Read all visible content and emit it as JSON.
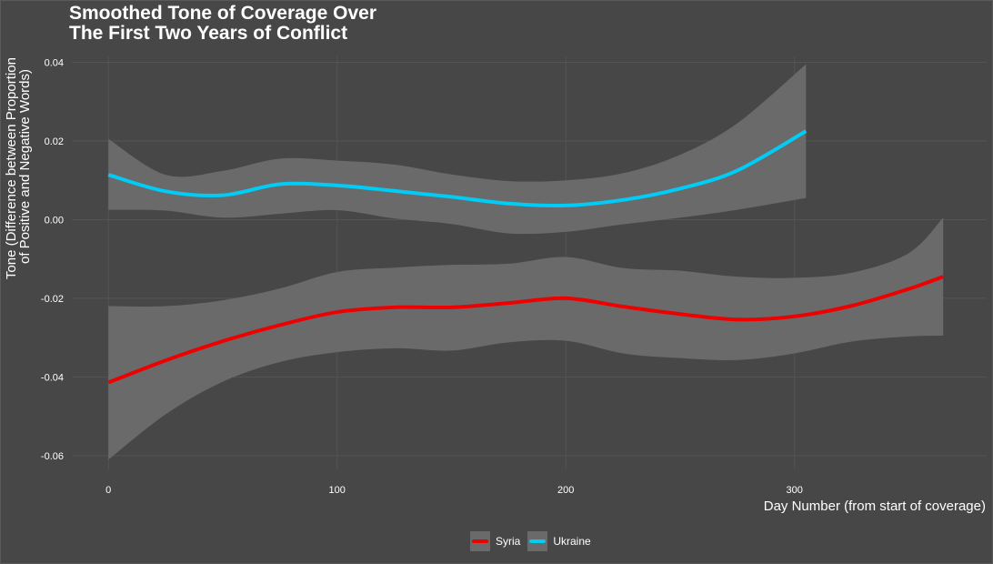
{
  "colors": {
    "background": "#474747",
    "grid": "#545454",
    "ribbon": "#6a6a6a",
    "syria": "#ee0000",
    "ukraine": "#00ccf5"
  },
  "chart_data": {
    "type": "line",
    "title_lines": [
      "Smoothed Tone of Coverage Over",
      "The First Two Years of Conflict"
    ],
    "xlabel": "Day Number (from start of coverage)",
    "ylabel_lines": [
      "Tone (Difference between Proportion",
      "of Positive and Negative Words)"
    ],
    "xlim": [
      -16,
      384
    ],
    "ylim": [
      -0.0635,
      0.0415
    ],
    "x_ticks": [
      0,
      100,
      200,
      300
    ],
    "y_ticks": [
      0.04,
      0.02,
      0.0,
      -0.02,
      -0.04,
      -0.06
    ],
    "y_tick_labels": [
      "0.04",
      "0.02",
      "0.00",
      "-0.02",
      "-0.04",
      "-0.06"
    ],
    "grid": true,
    "legend_position": "bottom",
    "series": [
      {
        "name": "Syria",
        "color_key": "syria",
        "x": [
          0,
          25,
          50,
          75,
          100,
          125,
          150,
          175,
          200,
          225,
          250,
          275,
          300,
          325,
          350,
          365
        ],
        "y": [
          -0.0414,
          -0.0358,
          -0.0309,
          -0.0268,
          -0.0235,
          -0.0223,
          -0.0223,
          -0.0212,
          -0.02,
          -0.0221,
          -0.024,
          -0.0254,
          -0.0246,
          -0.0219,
          -0.0176,
          -0.0145
        ],
        "upper": [
          -0.022,
          -0.022,
          -0.0205,
          -0.0175,
          -0.0133,
          -0.0122,
          -0.0115,
          -0.0112,
          -0.0095,
          -0.0123,
          -0.013,
          -0.0145,
          -0.0148,
          -0.0135,
          -0.0085,
          0.0005
        ],
        "lower": [
          -0.061,
          -0.0495,
          -0.0412,
          -0.0362,
          -0.0337,
          -0.0327,
          -0.0333,
          -0.0312,
          -0.0308,
          -0.034,
          -0.0352,
          -0.0357,
          -0.034,
          -0.031,
          -0.0297,
          -0.0295
        ]
      },
      {
        "name": "Ukraine",
        "color_key": "ukraine",
        "x": [
          0,
          25,
          50,
          75,
          100,
          125,
          150,
          175,
          200,
          225,
          250,
          275,
          305
        ],
        "y": [
          0.0114,
          0.0072,
          0.0062,
          0.009,
          0.0087,
          0.0073,
          0.0058,
          0.0041,
          0.0036,
          0.005,
          0.0079,
          0.0125,
          0.0225
        ],
        "upper": [
          0.0205,
          0.0114,
          0.0124,
          0.0155,
          0.015,
          0.014,
          0.0115,
          0.0098,
          0.01,
          0.0118,
          0.0165,
          0.0245,
          0.0395
        ],
        "lower": [
          0.0025,
          0.0023,
          0.0005,
          0.0015,
          0.0024,
          0.0003,
          -0.0011,
          -0.0035,
          -0.0031,
          -0.0012,
          0.0005,
          0.0025,
          0.0055
        ]
      }
    ]
  }
}
